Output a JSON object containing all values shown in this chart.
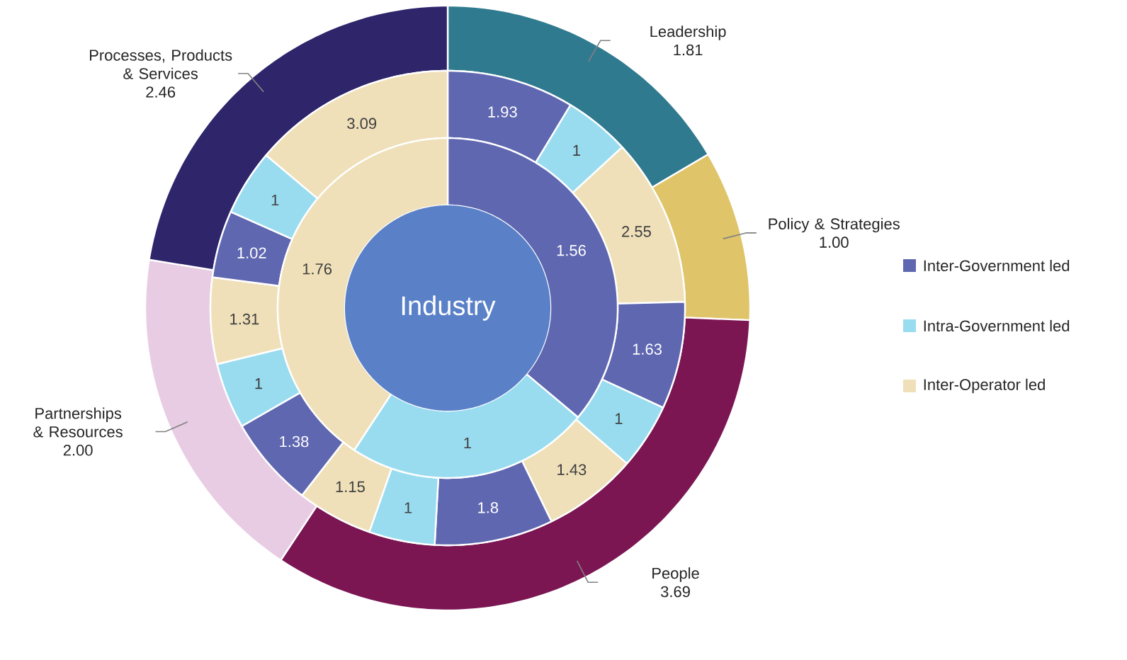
{
  "chart_data": [
    {
      "type": "donut",
      "categories": [
        "Leadership",
        "Policy & Strategies",
        "People",
        "Partnerships & Resources",
        "Processes, Products & Services"
      ],
      "values": [
        1.81,
        1.0,
        3.69,
        2.0,
        2.46
      ],
      "value_labels": [
        "1.81",
        "1.00",
        "3.69",
        "2.00",
        "2.46"
      ],
      "colors": [
        "#307a8f",
        "#dfc46a",
        "#7b1653",
        "#e8cce3",
        "#2e256b"
      ]
    },
    {
      "type": "donut",
      "categories": [
        null,
        null,
        null,
        null,
        null,
        null,
        null,
        null,
        null,
        null,
        null,
        null,
        null,
        null,
        null
      ],
      "values": [
        1.93,
        1,
        2.55,
        1.63,
        1,
        1.43,
        1.8,
        1,
        1.15,
        1.38,
        1,
        1.31,
        1.02,
        1,
        3.09
      ],
      "colors": [
        "#5f67b0",
        "#99dcf0",
        "#efe0b9",
        "#5f67b0",
        "#99dcf0",
        "#efe0b9",
        "#5f67b0",
        "#99dcf0",
        "#efe0b9",
        "#5f67b0",
        "#99dcf0",
        "#efe0b9",
        "#5f67b0",
        "#99dcf0",
        "#efe0b9"
      ],
      "data_labels": true
    },
    {
      "type": "donut",
      "title": "Industry",
      "categories": [
        "Inter-Government led",
        "Intra-Government led",
        "Inter-Operator led"
      ],
      "values": [
        1.56,
        1,
        1.76
      ],
      "colors": [
        "#5f67b0",
        "#99dcf0",
        "#efe0b9"
      ],
      "data_labels": true,
      "legend": "right"
    }
  ]
}
